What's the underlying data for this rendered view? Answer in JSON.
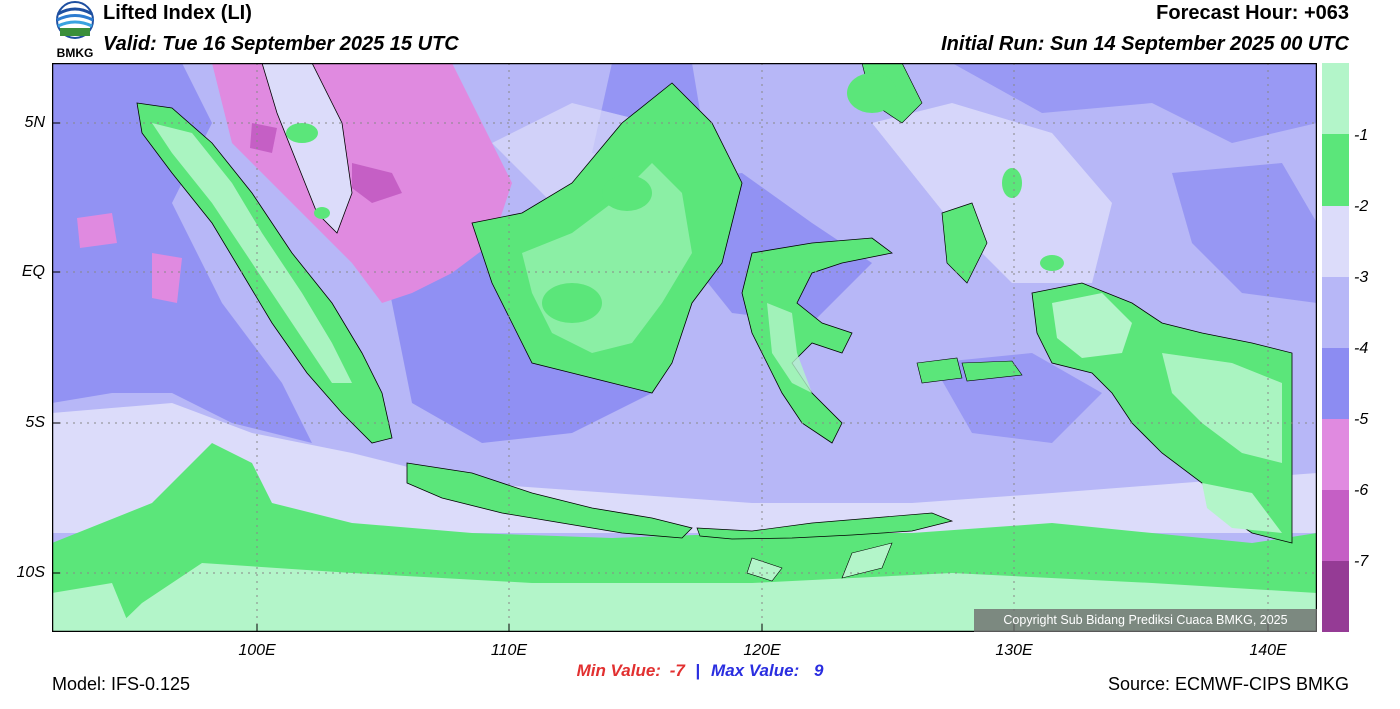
{
  "header": {
    "logo_text": "BMKG",
    "title": "Lifted Index (LI)",
    "valid": "Valid: Tue 16 September 2025 15 UTC",
    "forecast_hour": "Forecast Hour: +063",
    "initial_run": "Initial Run: Sun 14 September 2025 00 UTC"
  },
  "map": {
    "region": "Indonesia",
    "lat_labels": [
      "5N",
      "EQ",
      "5S",
      "10S"
    ],
    "lon_labels": [
      "100E",
      "110E",
      "120E",
      "130E",
      "140E"
    ],
    "copyright": "Copyright Sub Bidang Prediksi Cuaca BMKG, 2025"
  },
  "colorbar": {
    "labels": [
      "-1",
      "-2",
      "-3",
      "-4",
      "-5",
      "-6",
      "-7"
    ],
    "colors": [
      "#b3f5c9",
      "#5be67a",
      "#dcdcfa",
      "#b7b7f7",
      "#8c8cf2",
      "#e08ae0",
      "#c55fc5",
      "#953b95"
    ]
  },
  "stats": {
    "min_label": "Min Value:",
    "min_value": "-7",
    "separator": "|",
    "max_label": "Max Value:",
    "max_value": "9",
    "min_color": "#e23030",
    "max_color": "#2a2ee0"
  },
  "footer": {
    "model": "Model: IFS-0.125",
    "source": "Source: ECMWF-CIPS BMKG"
  }
}
